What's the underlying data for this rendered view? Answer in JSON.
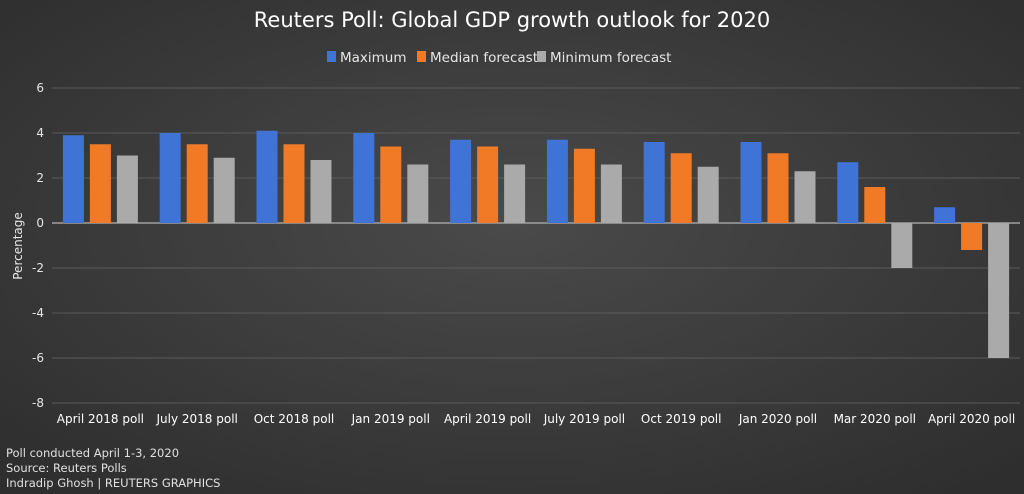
{
  "chart_data": {
    "type": "bar",
    "title": "Reuters Poll: Global GDP growth outlook for 2020",
    "xlabel": "",
    "ylabel": "Percentage",
    "ylim": [
      -8,
      6
    ],
    "yticks": [
      6,
      4,
      2,
      0,
      -2,
      -4,
      -6,
      -8
    ],
    "grid": true,
    "legend": "top-center",
    "categories": [
      "April 2018 poll",
      "July 2018 poll",
      "Oct 2018 poll",
      "Jan 2019 poll",
      "April 2019 poll",
      "July 2019 poll",
      "Oct 2019 poll",
      "Jan 2020 poll",
      "Mar 2020 poll",
      "April 2020 poll"
    ],
    "series": [
      {
        "name": "Maximum",
        "color": "#3f74d6",
        "values": [
          3.9,
          4.0,
          4.1,
          4.0,
          3.7,
          3.7,
          3.6,
          3.6,
          2.7,
          0.7
        ]
      },
      {
        "name": "Median forecast",
        "color": "#f07a25",
        "values": [
          3.5,
          3.5,
          3.5,
          3.4,
          3.4,
          3.3,
          3.1,
          3.1,
          1.6,
          -1.2
        ]
      },
      {
        "name": "Minimum forecast",
        "color": "#aaaaaa",
        "values": [
          3.0,
          2.9,
          2.8,
          2.6,
          2.6,
          2.6,
          2.5,
          2.3,
          -2.0,
          -6.0
        ]
      }
    ]
  },
  "footer": {
    "line1": "Poll conducted April 1-3, 2020",
    "line2": "Source: Reuters Polls",
    "line3": "Indradip Ghosh | REUTERS GRAPHICS"
  }
}
